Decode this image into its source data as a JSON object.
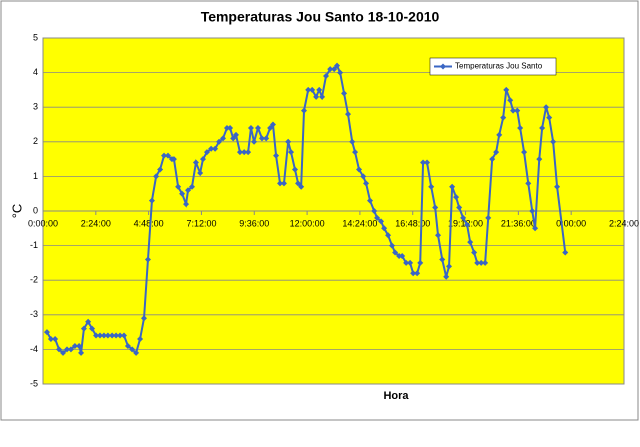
{
  "chart_data": {
    "type": "line",
    "title": "Temperaturas Jou Santo 18-10-2010",
    "xlabel": "Hora",
    "ylabel": "°C",
    "x": [
      0.18,
      0.36,
      0.55,
      0.73,
      0.91,
      1.09,
      1.27,
      1.45,
      1.64,
      1.73,
      1.86,
      2.05,
      2.23,
      2.41,
      2.59,
      2.77,
      2.95,
      3.14,
      3.32,
      3.5,
      3.68,
      3.86,
      4.05,
      4.23,
      4.41,
      4.59,
      4.77,
      4.95,
      5.14,
      5.32,
      5.5,
      5.68,
      5.86,
      5.95,
      6.14,
      6.32,
      6.5,
      6.59,
      6.77,
      6.95,
      7.14,
      7.27,
      7.45,
      7.64,
      7.82,
      8.0,
      8.18,
      8.36,
      8.5,
      8.64,
      8.77,
      8.95,
      9.14,
      9.32,
      9.45,
      9.59,
      9.77,
      9.95,
      10.14,
      10.32,
      10.45,
      10.59,
      10.77,
      10.95,
      11.14,
      11.27,
      11.45,
      11.59,
      11.73,
      11.86,
      12.05,
      12.23,
      12.41,
      12.55,
      12.68,
      12.86,
      13.05,
      13.23,
      13.36,
      13.5,
      13.68,
      13.86,
      14.05,
      14.18,
      14.36,
      14.55,
      14.68,
      14.86,
      15.05,
      15.18,
      15.36,
      15.5,
      15.68,
      15.86,
      16.0,
      16.18,
      16.32,
      16.5,
      16.68,
      16.82,
      17.0,
      17.14,
      17.27,
      17.45,
      17.64,
      17.82,
      17.95,
      18.14,
      18.32,
      18.45,
      18.59,
      18.77,
      18.91,
      19.09,
      19.27,
      19.41,
      19.59,
      19.73,
      19.91,
      20.09,
      20.23,
      20.41,
      20.59,
      20.73,
      20.91,
      21.05,
      21.23,
      21.36,
      21.55,
      21.68,
      21.86,
      22.05,
      22.23,
      22.36,
      22.55,
      22.68,
      22.86,
      23.0,
      23.18,
      23.36,
      23.73
    ],
    "series": [
      {
        "name": "Temperaturas Jou Santo",
        "color": "#3a66c4",
        "values": [
          -3.5,
          -3.7,
          -3.7,
          -4.0,
          -4.1,
          -4.0,
          -4.0,
          -3.9,
          -3.9,
          -4.1,
          -3.4,
          -3.2,
          -3.4,
          -3.6,
          -3.6,
          -3.6,
          -3.6,
          -3.6,
          -3.6,
          -3.6,
          -3.6,
          -3.9,
          -4.0,
          -4.1,
          -3.7,
          -3.1,
          -1.4,
          0.3,
          1.0,
          1.2,
          1.6,
          1.6,
          1.5,
          1.5,
          0.7,
          0.5,
          0.2,
          0.6,
          0.7,
          1.4,
          1.1,
          1.5,
          1.7,
          1.8,
          1.8,
          2.0,
          2.1,
          2.4,
          2.4,
          2.1,
          2.2,
          1.7,
          1.7,
          1.7,
          2.4,
          2.0,
          2.4,
          2.1,
          2.1,
          2.4,
          2.5,
          1.6,
          0.8,
          0.8,
          2.0,
          1.7,
          1.2,
          0.8,
          0.7,
          2.9,
          3.5,
          3.5,
          3.3,
          3.5,
          3.3,
          3.9,
          4.1,
          4.1,
          4.2,
          4.0,
          3.4,
          2.8,
          2.0,
          1.7,
          1.2,
          1.0,
          0.8,
          0.3,
          0.0,
          -0.2,
          -0.3,
          -0.5,
          -0.7,
          -1.0,
          -1.2,
          -1.3,
          -1.3,
          -1.5,
          -1.5,
          -1.8,
          -1.8,
          -1.5,
          1.4,
          1.4,
          0.7,
          0.1,
          -0.7,
          -1.4,
          -1.9,
          -1.6,
          0.7,
          0.4,
          0.1,
          -0.2,
          -0.4,
          -0.9,
          -1.2,
          -1.5,
          -1.5,
          -1.5,
          -0.2,
          1.5,
          1.7,
          2.2,
          2.7,
          3.5,
          3.2,
          2.9,
          2.9,
          2.4,
          1.7,
          0.8,
          0.0,
          -0.5,
          1.5,
          2.4,
          3.0,
          2.7,
          2.0,
          0.7,
          -1.2
        ]
      }
    ],
    "xlim": [
      0,
      26.4
    ],
    "xticks": [
      {
        "value": 0,
        "label": "0:00:00"
      },
      {
        "value": 2.4,
        "label": "2:24:00"
      },
      {
        "value": 4.8,
        "label": "4:48:00"
      },
      {
        "value": 7.2,
        "label": "7:12:00"
      },
      {
        "value": 9.6,
        "label": "9:36:00"
      },
      {
        "value": 12,
        "label": "12:00:00"
      },
      {
        "value": 14.4,
        "label": "14:24:00"
      },
      {
        "value": 16.8,
        "label": "16:48:00"
      },
      {
        "value": 19.2,
        "label": "19:12:00"
      },
      {
        "value": 21.6,
        "label": "21:36:00"
      },
      {
        "value": 24,
        "label": "0:00:00"
      },
      {
        "value": 26.4,
        "label": "2:24:00"
      }
    ],
    "ylim": [
      -5,
      5
    ],
    "yticks": [
      -5,
      -4,
      -3,
      -2,
      -1,
      0,
      1,
      2,
      3,
      4,
      5
    ],
    "grid": true,
    "legend": "upper right",
    "background": "#ffff00"
  }
}
